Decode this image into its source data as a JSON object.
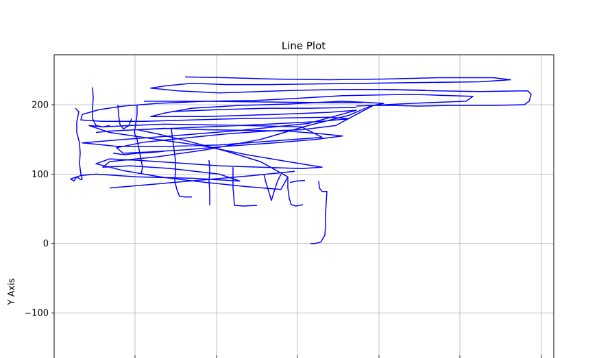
{
  "chart_data": {
    "type": "line",
    "title": "Line Plot",
    "xlabel": "",
    "ylabel": "Y Axis",
    "ylim": [
      -165,
      272
    ],
    "y_ticks": [
      200,
      100,
      0,
      -100
    ],
    "y_tick_labels": [
      "200",
      "100",
      "0",
      "−100"
    ],
    "grid": true,
    "line_color": "#0000ff",
    "series": [
      {
        "values_xy": [
          [
            110,
            195
          ],
          [
            115,
            190
          ],
          [
            112,
            175
          ],
          [
            112,
            160
          ],
          [
            116,
            145
          ],
          [
            117,
            130
          ],
          [
            116,
            115
          ],
          [
            118,
            100
          ],
          [
            120,
            93
          ],
          [
            118,
            92
          ],
          [
            112,
            96
          ],
          [
            108,
            90
          ],
          [
            103,
            93
          ],
          [
            118,
            98
          ],
          [
            140,
            100
          ],
          [
            200,
            96
          ],
          [
            280,
            94
          ],
          [
            350,
            90
          ],
          [
            320,
            100
          ],
          [
            250,
            108
          ],
          [
            190,
            112
          ],
          [
            150,
            110
          ],
          [
            160,
            118
          ],
          [
            230,
            125
          ],
          [
            300,
            135
          ],
          [
            380,
            150
          ],
          [
            450,
            170
          ],
          [
            510,
            185
          ],
          [
            540,
            198
          ],
          [
            560,
            202
          ],
          [
            500,
            205
          ],
          [
            420,
            201
          ],
          [
            350,
            199
          ],
          [
            280,
            195
          ],
          [
            240,
            188
          ],
          [
            220,
            183
          ],
          [
            300,
            183
          ],
          [
            400,
            186
          ],
          [
            480,
            189
          ],
          [
            520,
            192
          ],
          [
            450,
            173
          ],
          [
            350,
            163
          ],
          [
            250,
            155
          ],
          [
            180,
            150
          ],
          [
            120,
            145
          ],
          [
            170,
            140
          ],
          [
            250,
            140
          ],
          [
            320,
            142
          ],
          [
            400,
            148
          ],
          [
            470,
            153
          ],
          [
            440,
            168
          ],
          [
            360,
            170
          ],
          [
            300,
            171
          ],
          [
            240,
            172
          ],
          [
            190,
            170
          ],
          [
            150,
            168
          ],
          [
            130,
            170
          ],
          [
            160,
            160
          ],
          [
            230,
            150
          ],
          [
            300,
            140
          ],
          [
            360,
            128
          ],
          [
            420,
            118
          ],
          [
            470,
            110
          ],
          [
            440,
            108
          ],
          [
            380,
            110
          ],
          [
            320,
            112
          ],
          [
            260,
            116
          ],
          [
            200,
            120
          ],
          [
            160,
            122
          ],
          [
            140,
            115
          ],
          [
            180,
            105
          ],
          [
            240,
            95
          ],
          [
            300,
            88
          ],
          [
            360,
            82
          ],
          [
            410,
            78
          ],
          [
            420,
            96
          ],
          [
            380,
            118
          ],
          [
            330,
            133
          ],
          [
            280,
            146
          ],
          [
            230,
            158
          ],
          [
            200,
            164
          ],
          [
            240,
            166
          ],
          [
            300,
            164
          ],
          [
            360,
            163
          ],
          [
            420,
            162
          ],
          [
            470,
            158
          ],
          [
            500,
            155
          ],
          [
            460,
            150
          ],
          [
            400,
            145
          ],
          [
            330,
            140
          ],
          [
            270,
            135
          ],
          [
            220,
            132
          ],
          [
            180,
            130
          ],
          [
            170,
            138
          ],
          [
            210,
            146
          ],
          [
            270,
            152
          ],
          [
            330,
            158
          ],
          [
            390,
            162
          ],
          [
            440,
            164
          ],
          [
            490,
            170
          ],
          [
            520,
            186
          ],
          [
            545,
            199
          ],
          [
            600,
            202
          ],
          [
            680,
            205
          ],
          [
            690,
            212
          ],
          [
            600,
            215
          ],
          [
            500,
            213
          ],
          [
            430,
            209
          ],
          [
            370,
            206
          ],
          [
            300,
            205
          ],
          [
            230,
            202
          ],
          [
            180,
            198
          ],
          [
            145,
            193
          ],
          [
            120,
            186
          ],
          [
            118,
            178
          ],
          [
            150,
            176
          ],
          [
            210,
            176
          ],
          [
            280,
            178
          ],
          [
            350,
            180
          ],
          [
            420,
            181
          ],
          [
            480,
            182
          ],
          [
            510,
            180
          ],
          [
            470,
            176
          ],
          [
            410,
            173
          ],
          [
            350,
            170
          ],
          [
            300,
            168
          ],
          [
            250,
            166
          ],
          [
            200,
            164
          ],
          [
            160,
            162
          ],
          [
            140,
            160
          ]
        ]
      },
      {
        "values_xy": [
          [
            270,
            240
          ],
          [
            330,
            239
          ],
          [
            400,
            237
          ],
          [
            480,
            236
          ],
          [
            560,
            237
          ],
          [
            640,
            239
          ],
          [
            720,
            239
          ],
          [
            745,
            236
          ],
          [
            700,
            233
          ],
          [
            620,
            232
          ],
          [
            540,
            231
          ],
          [
            460,
            230
          ],
          [
            390,
            229
          ],
          [
            330,
            229
          ],
          [
            280,
            231
          ],
          [
            240,
            227
          ],
          [
            220,
            224
          ],
          [
            260,
            220
          ],
          [
            320,
            217
          ],
          [
            380,
            219
          ],
          [
            440,
            221
          ],
          [
            500,
            222
          ],
          [
            560,
            222
          ],
          [
            620,
            221
          ]
        ]
      },
      {
        "values_xy": [
          [
            560,
            222
          ],
          [
            640,
            220
          ],
          [
            700,
            219
          ],
          [
            770,
            220
          ],
          [
            775,
            215
          ],
          [
            772,
            205
          ],
          [
            765,
            200
          ],
          [
            720,
            199
          ],
          [
            660,
            199
          ],
          [
            610,
            198
          ],
          [
            570,
            199
          ],
          [
            540,
            199
          ],
          [
            520,
            198
          ]
        ]
      },
      {
        "values_xy": [
          [
            200,
            200
          ],
          [
            200,
            186
          ],
          [
            198,
            172
          ],
          [
            196,
            160
          ],
          [
            200,
            150
          ],
          [
            202,
            140
          ],
          [
            204,
            130
          ],
          [
            206,
            120
          ],
          [
            208,
            110
          ],
          [
            206,
            100
          ]
        ]
      },
      {
        "values_xy": [
          [
            250,
            165
          ],
          [
            252,
            150
          ],
          [
            254,
            135
          ],
          [
            256,
            120
          ],
          [
            256,
            104
          ],
          [
            255,
            90
          ],
          [
            258,
            78
          ],
          [
            262,
            68
          ],
          [
            270,
            67
          ],
          [
            280,
            67
          ]
        ]
      },
      {
        "values_xy": [
          [
            305,
            120
          ],
          [
            306,
            105
          ],
          [
            305,
            90
          ],
          [
            306,
            75
          ],
          [
            306,
            55
          ]
        ]
      },
      {
        "values_xy": [
          [
            340,
            110
          ],
          [
            340,
            95
          ],
          [
            340,
            80
          ],
          [
            341,
            70
          ],
          [
            342,
            55
          ],
          [
            355,
            54
          ],
          [
            375,
            55
          ]
        ]
      },
      {
        "values_xy": [
          [
            385,
            100
          ],
          [
            388,
            88
          ],
          [
            392,
            75
          ],
          [
            396,
            62
          ],
          [
            400,
            75
          ],
          [
            405,
            90
          ],
          [
            410,
            100
          ]
        ]
      },
      {
        "values_xy": [
          [
            420,
            95
          ],
          [
            420,
            80
          ],
          [
            422,
            65
          ],
          [
            425,
            56
          ],
          [
            432,
            54
          ],
          [
            442,
            56
          ]
        ]
      },
      {
        "values_xy": [
          [
            465,
            90
          ],
          [
            466,
            80
          ],
          [
            470,
            75
          ],
          [
            477,
            75
          ],
          [
            476,
            60
          ],
          [
            475,
            42
          ],
          [
            475,
            25
          ],
          [
            474,
            12
          ],
          [
            468,
            2
          ],
          [
            460,
            0
          ],
          [
            453,
            0
          ]
        ]
      },
      {
        "values_xy": [
          [
            423,
            88
          ],
          [
            433,
            90
          ],
          [
            445,
            91
          ]
        ]
      },
      {
        "values_xy": [
          [
            135,
            225
          ],
          [
            136,
            210
          ],
          [
            135,
            195
          ],
          [
            135,
            180
          ],
          [
            140,
            170
          ],
          [
            150,
            168
          ],
          [
            160,
            170
          ]
        ]
      },
      {
        "values_xy": [
          [
            172,
            200
          ],
          [
            173,
            185
          ],
          [
            175,
            172
          ],
          [
            180,
            165
          ],
          [
            188,
            170
          ],
          [
            192,
            180
          ]
        ]
      },
      {
        "values_xy": [
          [
            210,
            205
          ],
          [
            300,
            205
          ],
          [
            380,
            204
          ],
          [
            460,
            203
          ],
          [
            530,
            203
          ]
        ]
      },
      {
        "values_xy": [
          [
            165,
            130
          ],
          [
            182,
            128
          ],
          [
            200,
            130
          ],
          [
            220,
            131
          ],
          [
            240,
            133
          ]
        ]
      },
      {
        "values_xy": [
          [
            160,
            80
          ],
          [
            230,
            86
          ],
          [
            300,
            92
          ],
          [
            370,
            98
          ],
          [
            430,
            104
          ]
        ]
      },
      {
        "values_xy": [
          [
            250,
            190
          ],
          [
            320,
            193
          ],
          [
            390,
            195
          ],
          [
            450,
            195
          ],
          [
            520,
            196
          ]
        ]
      }
    ]
  }
}
